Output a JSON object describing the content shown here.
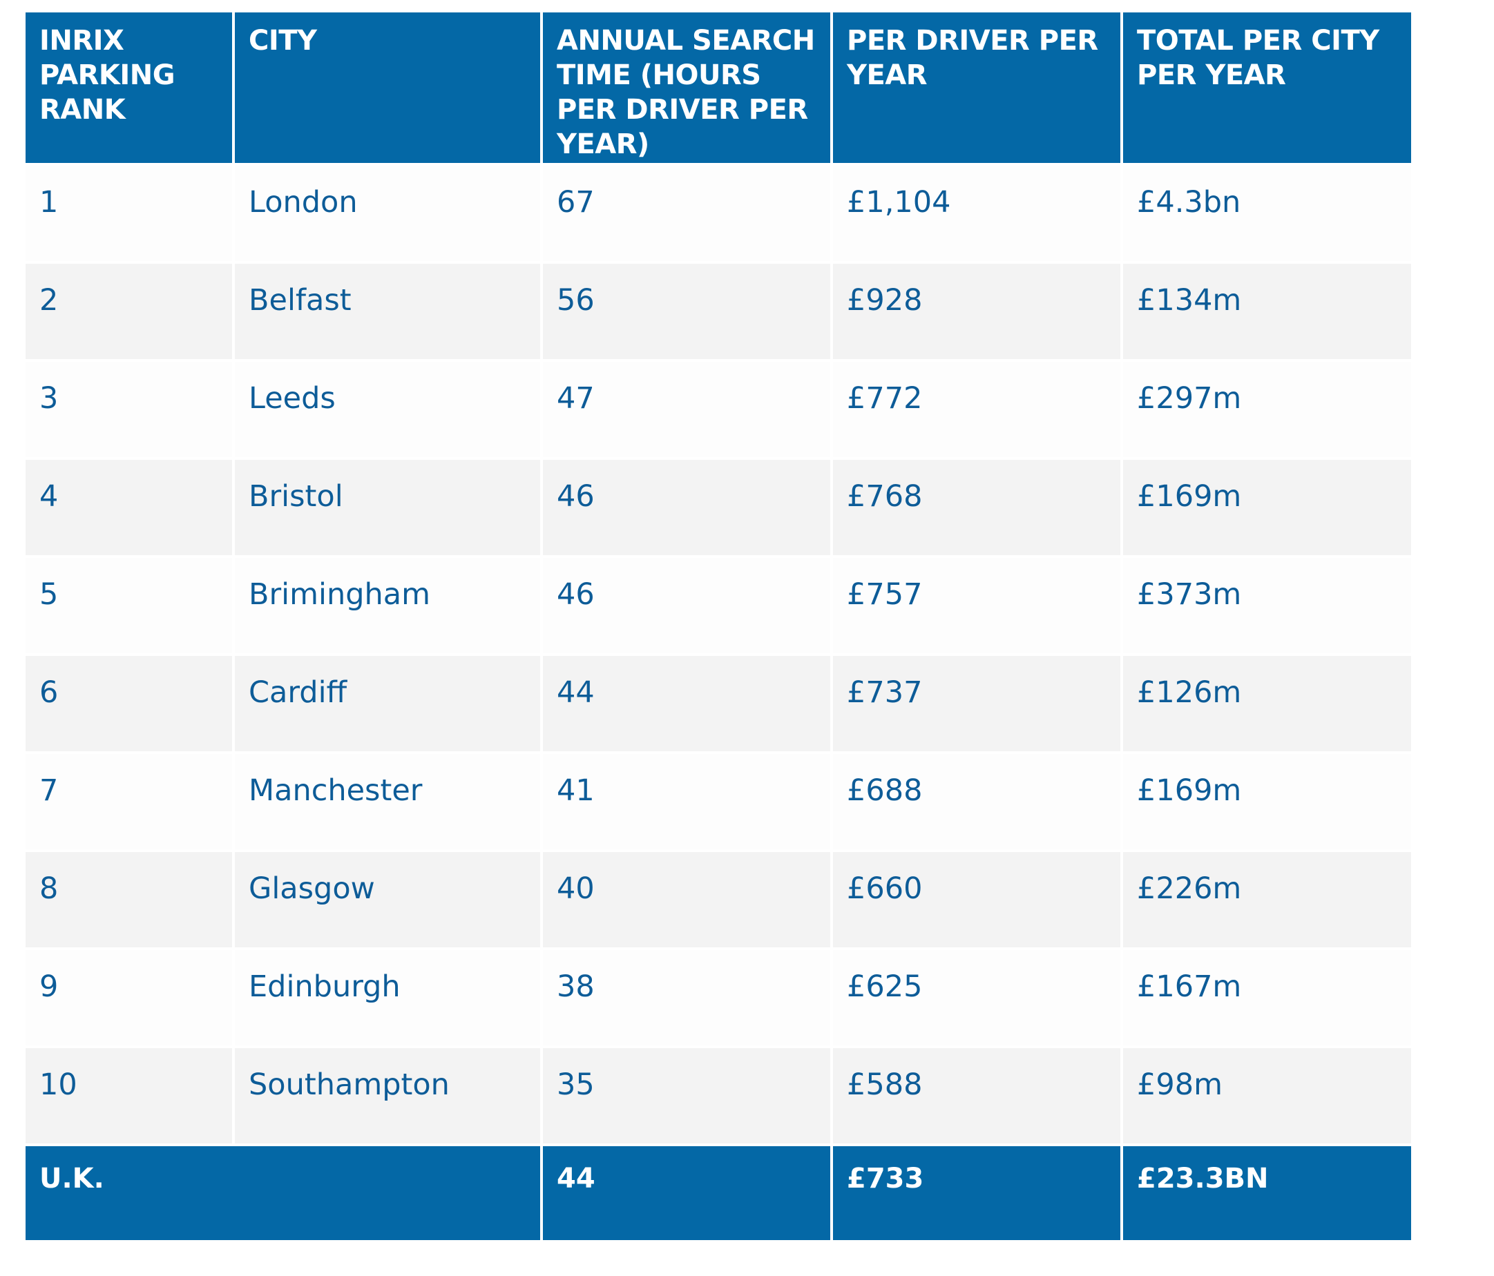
{
  "table": {
    "headers": [
      "INRIX PARKING RANK",
      "CITY",
      "ANNUAL SEARCH TIME (HOURS PER DRIVER PER YEAR)",
      "PER DRIVER PER YEAR",
      "TOTAL PER CITY PER YEAR"
    ],
    "rows": [
      [
        "1",
        "London",
        "67",
        "£1,104",
        "£4.3bn"
      ],
      [
        "2",
        "Belfast",
        "56",
        "£928",
        "£134m"
      ],
      [
        "3",
        "Leeds",
        "47",
        "£772",
        "£297m"
      ],
      [
        "4",
        "Bristol",
        "46",
        "£768",
        "£169m"
      ],
      [
        "5",
        "Brimingham",
        "46",
        "£757",
        "£373m"
      ],
      [
        "6",
        "Cardiff",
        "44",
        "£737",
        "£126m"
      ],
      [
        "7",
        "Manchester",
        "41",
        "£688",
        "£169m"
      ],
      [
        "8",
        "Glasgow",
        "40",
        "£660",
        "£226m"
      ],
      [
        "9",
        "Edinburgh",
        "38",
        "£625",
        "£167m"
      ],
      [
        "10",
        "Southampton",
        "35",
        "£588",
        "£98m"
      ]
    ],
    "footer": {
      "label": "U.K.",
      "search_time": "44",
      "per_driver": "£733",
      "total": "£23.3BN"
    }
  },
  "colors": {
    "header_bg": "#0468a6",
    "header_text": "#ffffff",
    "body_text": "#0d5c98",
    "row_light": "#fdfdfd",
    "row_shaded": "#f3f3f3"
  }
}
